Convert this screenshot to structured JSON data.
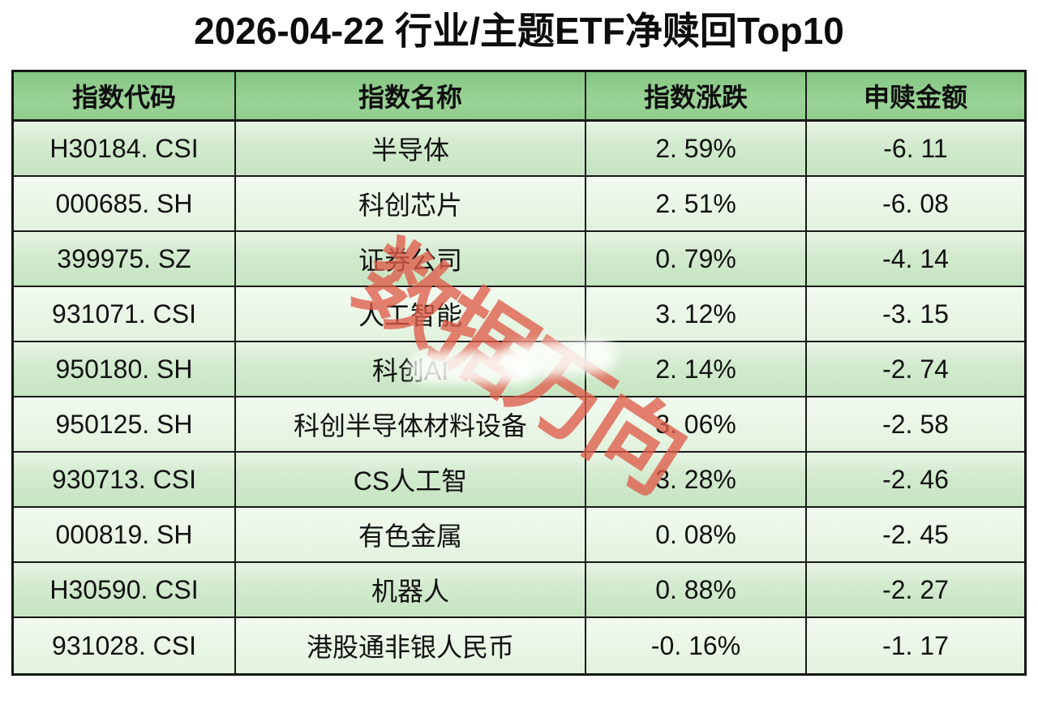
{
  "title": {
    "text": "2026-04-22 行业/主题ETF净赎回Top10"
  },
  "watermark": {
    "text": "数据万向",
    "color": "#df5c4a"
  },
  "colors": {
    "header_green": "#8bca88",
    "row_odd_green": "#d2eace",
    "row_even_green": "#e9f6e5",
    "border": "#1a1a1a",
    "watermark_red": "#df5c4a"
  },
  "table": {
    "columns": [
      "指数代码",
      "指数名称",
      "指数涨跌",
      "申赎金额"
    ],
    "rows": [
      {
        "code": "H30184. CSI",
        "name": "半导体",
        "change": "2. 59%",
        "amount": "-6. 11"
      },
      {
        "code": "000685. SH",
        "name": "科创芯片",
        "change": "2. 51%",
        "amount": "-6. 08"
      },
      {
        "code": "399975. SZ",
        "name": "证券公司",
        "change": "0. 79%",
        "amount": "-4. 14"
      },
      {
        "code": "931071. CSI",
        "name": "人工智能",
        "change": "3. 12%",
        "amount": "-3. 15"
      },
      {
        "code": "950180. SH",
        "name": "科创AI",
        "change": "2. 14%",
        "amount": "-2. 74"
      },
      {
        "code": "950125. SH",
        "name": "科创半导体材料设备",
        "change": "3. 06%",
        "amount": "-2. 58"
      },
      {
        "code": "930713. CSI",
        "name": "CS人工智",
        "change": "3. 28%",
        "amount": "-2. 46"
      },
      {
        "code": "000819. SH",
        "name": "有色金属",
        "change": "0. 08%",
        "amount": "-2. 45"
      },
      {
        "code": "H30590. CSI",
        "name": "机器人",
        "change": "0. 88%",
        "amount": "-2. 27"
      },
      {
        "code": "931028. CSI",
        "name": "港股通非银人民币",
        "change": "-0. 16%",
        "amount": "-1. 17"
      }
    ]
  },
  "chart_data": {
    "type": "table",
    "title": "2026-04-22 行业/主题ETF净赎回Top10",
    "columns": [
      "指数代码",
      "指数名称",
      "指数涨跌",
      "申赎金额"
    ],
    "rows": [
      [
        "H30184.CSI",
        "半导体",
        2.59,
        -6.11
      ],
      [
        "000685.SH",
        "科创芯片",
        2.51,
        -6.08
      ],
      [
        "399975.SZ",
        "证券公司",
        0.79,
        -4.14
      ],
      [
        "931071.CSI",
        "人工智能",
        3.12,
        -3.15
      ],
      [
        "950180.SH",
        "科创AI",
        2.14,
        -2.74
      ],
      [
        "950125.SH",
        "科创半导体材料设备",
        3.06,
        -2.58
      ],
      [
        "930713.CSI",
        "CS人工智",
        3.28,
        -2.46
      ],
      [
        "000819.SH",
        "有色金属",
        0.08,
        -2.45
      ],
      [
        "H30590.CSI",
        "机器人",
        0.88,
        -2.27
      ],
      [
        "931028.CSI",
        "港股通非银人民币",
        -0.16,
        -1.17
      ]
    ]
  }
}
